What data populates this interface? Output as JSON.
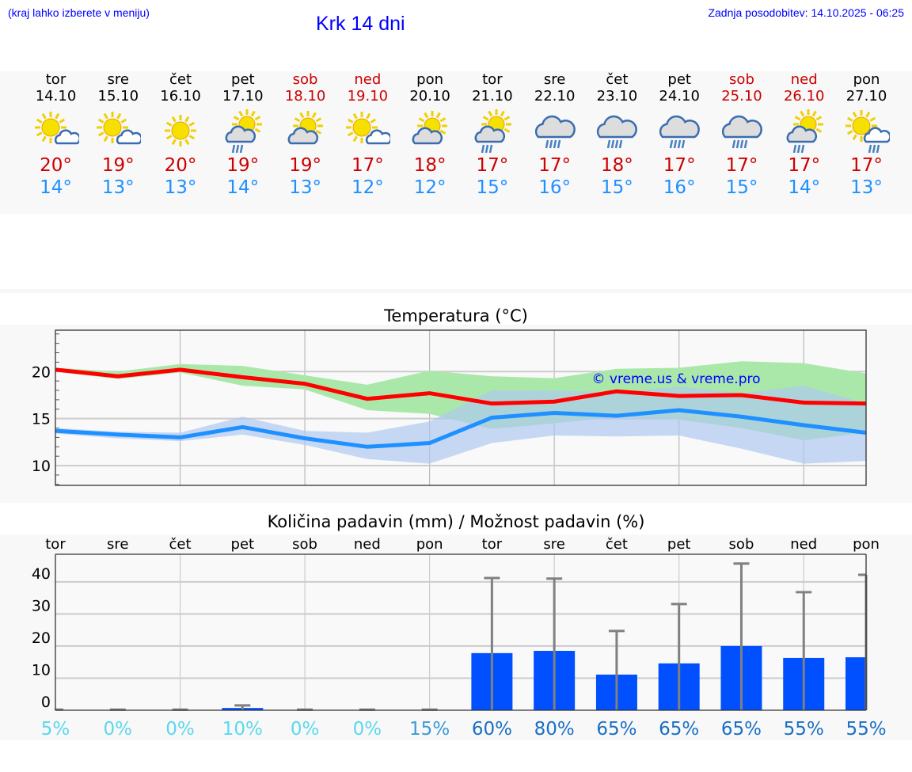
{
  "header": {
    "hint": "(kraj lahko izberete v meniju)",
    "title": "Krk 14 dni",
    "updated": "Zadnja posodobitev: 14.10.2025 - 06:25"
  },
  "colors": {
    "max": "#ff0000",
    "min": "#1e90ff",
    "max_band": "#aae8aa",
    "min_band": "#aec7f2",
    "bar": "#0050ff",
    "error": "#808080"
  },
  "days": [
    {
      "name": "tor",
      "date": "14.10",
      "weekend": false,
      "icon": "sun-small-cloud",
      "max": "20°",
      "min": "14°"
    },
    {
      "name": "sre",
      "date": "15.10",
      "weekend": false,
      "icon": "sun-small-cloud",
      "max": "19°",
      "min": "13°"
    },
    {
      "name": "čet",
      "date": "16.10",
      "weekend": false,
      "icon": "sun",
      "max": "20°",
      "min": "13°"
    },
    {
      "name": "pet",
      "date": "17.10",
      "weekend": false,
      "icon": "sun-cloud-rain",
      "max": "19°",
      "min": "14°"
    },
    {
      "name": "sob",
      "date": "18.10",
      "weekend": true,
      "icon": "sun-cloud",
      "max": "19°",
      "min": "13°"
    },
    {
      "name": "ned",
      "date": "19.10",
      "weekend": true,
      "icon": "sun-small-cloud",
      "max": "17°",
      "min": "12°"
    },
    {
      "name": "pon",
      "date": "20.10",
      "weekend": false,
      "icon": "sun-cloud",
      "max": "18°",
      "min": "12°"
    },
    {
      "name": "tor",
      "date": "21.10",
      "weekend": false,
      "icon": "sun-cloud-rain",
      "max": "17°",
      "min": "15°"
    },
    {
      "name": "sre",
      "date": "22.10",
      "weekend": false,
      "icon": "cloud-rain",
      "max": "17°",
      "min": "16°"
    },
    {
      "name": "čet",
      "date": "23.10",
      "weekend": false,
      "icon": "cloud-rain",
      "max": "18°",
      "min": "15°"
    },
    {
      "name": "pet",
      "date": "24.10",
      "weekend": false,
      "icon": "cloud-rain",
      "max": "17°",
      "min": "16°"
    },
    {
      "name": "sob",
      "date": "25.10",
      "weekend": true,
      "icon": "cloud-rain",
      "max": "17°",
      "min": "15°"
    },
    {
      "name": "ned",
      "date": "26.10",
      "weekend": true,
      "icon": "sun-cloud-rain",
      "max": "17°",
      "min": "14°"
    },
    {
      "name": "pon",
      "date": "27.10",
      "weekend": false,
      "icon": "sun-small-cloud-rain",
      "max": "17°",
      "min": "13°"
    }
  ],
  "chart_data": [
    {
      "type": "line",
      "title": "Temperatura (°C)",
      "ylim": [
        7.9,
        24.4
      ],
      "yticks": [
        10,
        15,
        20
      ],
      "ytick_labels": [
        "10",
        "15",
        "20"
      ],
      "watermark": "© vreme.us & vreme.pro",
      "series": [
        {
          "name": "max",
          "values": [
            20.2,
            19.5,
            20.2,
            19.4,
            18.7,
            17.1,
            17.7,
            16.6,
            16.8,
            17.9,
            17.4,
            17.5,
            16.7,
            16.6
          ],
          "band_upper": [
            20.4,
            20.0,
            20.8,
            20.6,
            19.6,
            18.6,
            20.1,
            19.5,
            19.3,
            20.3,
            20.4,
            21.1,
            20.9,
            19.8
          ],
          "band_lower": [
            20.0,
            19.2,
            19.9,
            18.5,
            18.1,
            15.9,
            15.5,
            13.9,
            14.5,
            15.2,
            14.9,
            14.0,
            12.7,
            13.5
          ]
        },
        {
          "name": "min",
          "values": [
            13.7,
            13.3,
            13.0,
            14.1,
            12.9,
            12.0,
            12.4,
            15.1,
            15.6,
            15.3,
            15.9,
            15.2,
            14.3,
            13.5
          ],
          "band_upper": [
            14.0,
            13.6,
            13.5,
            15.2,
            13.7,
            13.5,
            14.7,
            18.0,
            18.0,
            17.8,
            18.4,
            17.7,
            18.5,
            16.6
          ],
          "band_lower": [
            13.4,
            12.9,
            12.6,
            13.3,
            12.2,
            10.7,
            10.2,
            12.4,
            13.2,
            13.1,
            13.2,
            11.8,
            10.2,
            10.5
          ]
        }
      ]
    },
    {
      "type": "bar",
      "title": "Količina padavin (mm) / Možnost padavin (%)",
      "ylim": [
        0,
        48.6
      ],
      "yticks": [
        0,
        10,
        20,
        30,
        40
      ],
      "ytick_labels": [
        "0",
        "10",
        "20",
        "30",
        "40"
      ],
      "categories": [
        "tor",
        "sre",
        "čet",
        "pet",
        "sob",
        "ned",
        "pon",
        "tor",
        "sre",
        "čet",
        "pet",
        "sob",
        "ned",
        "pon"
      ],
      "values": [
        0,
        0,
        0,
        0.7,
        0,
        0,
        0,
        17.8,
        18.5,
        11.1,
        14.6,
        20.0,
        16.3,
        16.5
      ],
      "error_upper": [
        0.2,
        0.2,
        0.2,
        1.5,
        0.2,
        0.2,
        0.2,
        41.2,
        41.0,
        24.7,
        33.1,
        45.7,
        36.8,
        42.2
      ],
      "probability": [
        "5%",
        "0%",
        "0%",
        "10%",
        "0%",
        "0%",
        "15%",
        "60%",
        "80%",
        "65%",
        "65%",
        "65%",
        "55%",
        "55%"
      ]
    }
  ]
}
